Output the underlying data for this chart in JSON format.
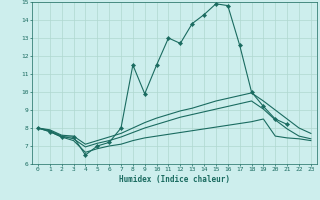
{
  "xlabel": "Humidex (Indice chaleur)",
  "background_color": "#cdeeed",
  "grid_color": "#b0d8d0",
  "line_color": "#1a6b60",
  "xlim": [
    -0.5,
    23.5
  ],
  "ylim": [
    6,
    15
  ],
  "xticks": [
    0,
    1,
    2,
    3,
    4,
    5,
    6,
    7,
    8,
    9,
    10,
    11,
    12,
    13,
    14,
    15,
    16,
    17,
    18,
    19,
    20,
    21,
    22,
    23
  ],
  "yticks": [
    6,
    7,
    8,
    9,
    10,
    11,
    12,
    13,
    14,
    15
  ],
  "series_main": {
    "x": [
      0,
      1,
      2,
      3,
      4,
      5,
      6,
      7,
      8,
      9,
      10,
      11,
      12,
      13,
      14,
      15,
      16,
      17,
      18,
      19,
      20,
      21
    ],
    "y": [
      8.0,
      7.8,
      7.5,
      7.5,
      6.5,
      7.0,
      7.2,
      8.0,
      11.5,
      9.9,
      11.5,
      13.0,
      12.7,
      13.8,
      14.3,
      14.9,
      14.8,
      12.6,
      10.0,
      9.2,
      8.5,
      8.2
    ]
  },
  "series2": {
    "x": [
      0,
      1,
      2,
      3,
      4,
      5,
      6,
      7,
      8,
      9,
      10,
      11,
      12,
      13,
      14,
      15,
      16,
      17,
      18,
      19,
      20,
      21,
      22,
      23
    ],
    "y": [
      8.0,
      7.9,
      7.6,
      7.55,
      7.1,
      7.3,
      7.5,
      7.7,
      8.0,
      8.3,
      8.55,
      8.75,
      8.95,
      9.1,
      9.3,
      9.5,
      9.65,
      9.8,
      9.95,
      9.5,
      9.0,
      8.5,
      8.0,
      7.7
    ]
  },
  "series3": {
    "x": [
      0,
      1,
      2,
      3,
      4,
      5,
      6,
      7,
      8,
      9,
      10,
      11,
      12,
      13,
      14,
      15,
      16,
      17,
      18,
      19,
      20,
      21,
      22,
      23
    ],
    "y": [
      8.0,
      7.85,
      7.55,
      7.4,
      6.95,
      7.15,
      7.3,
      7.5,
      7.75,
      8.0,
      8.2,
      8.4,
      8.6,
      8.75,
      8.9,
      9.05,
      9.2,
      9.35,
      9.5,
      9.05,
      8.45,
      7.95,
      7.55,
      7.4
    ]
  },
  "series4": {
    "x": [
      0,
      1,
      2,
      3,
      4,
      5,
      6,
      7,
      8,
      9,
      10,
      11,
      12,
      13,
      14,
      15,
      16,
      17,
      18,
      19,
      20,
      21,
      22,
      23
    ],
    "y": [
      8.0,
      7.8,
      7.5,
      7.3,
      6.65,
      6.85,
      7.0,
      7.1,
      7.3,
      7.45,
      7.55,
      7.65,
      7.75,
      7.85,
      7.95,
      8.05,
      8.15,
      8.25,
      8.35,
      8.5,
      7.55,
      7.45,
      7.4,
      7.3
    ]
  }
}
